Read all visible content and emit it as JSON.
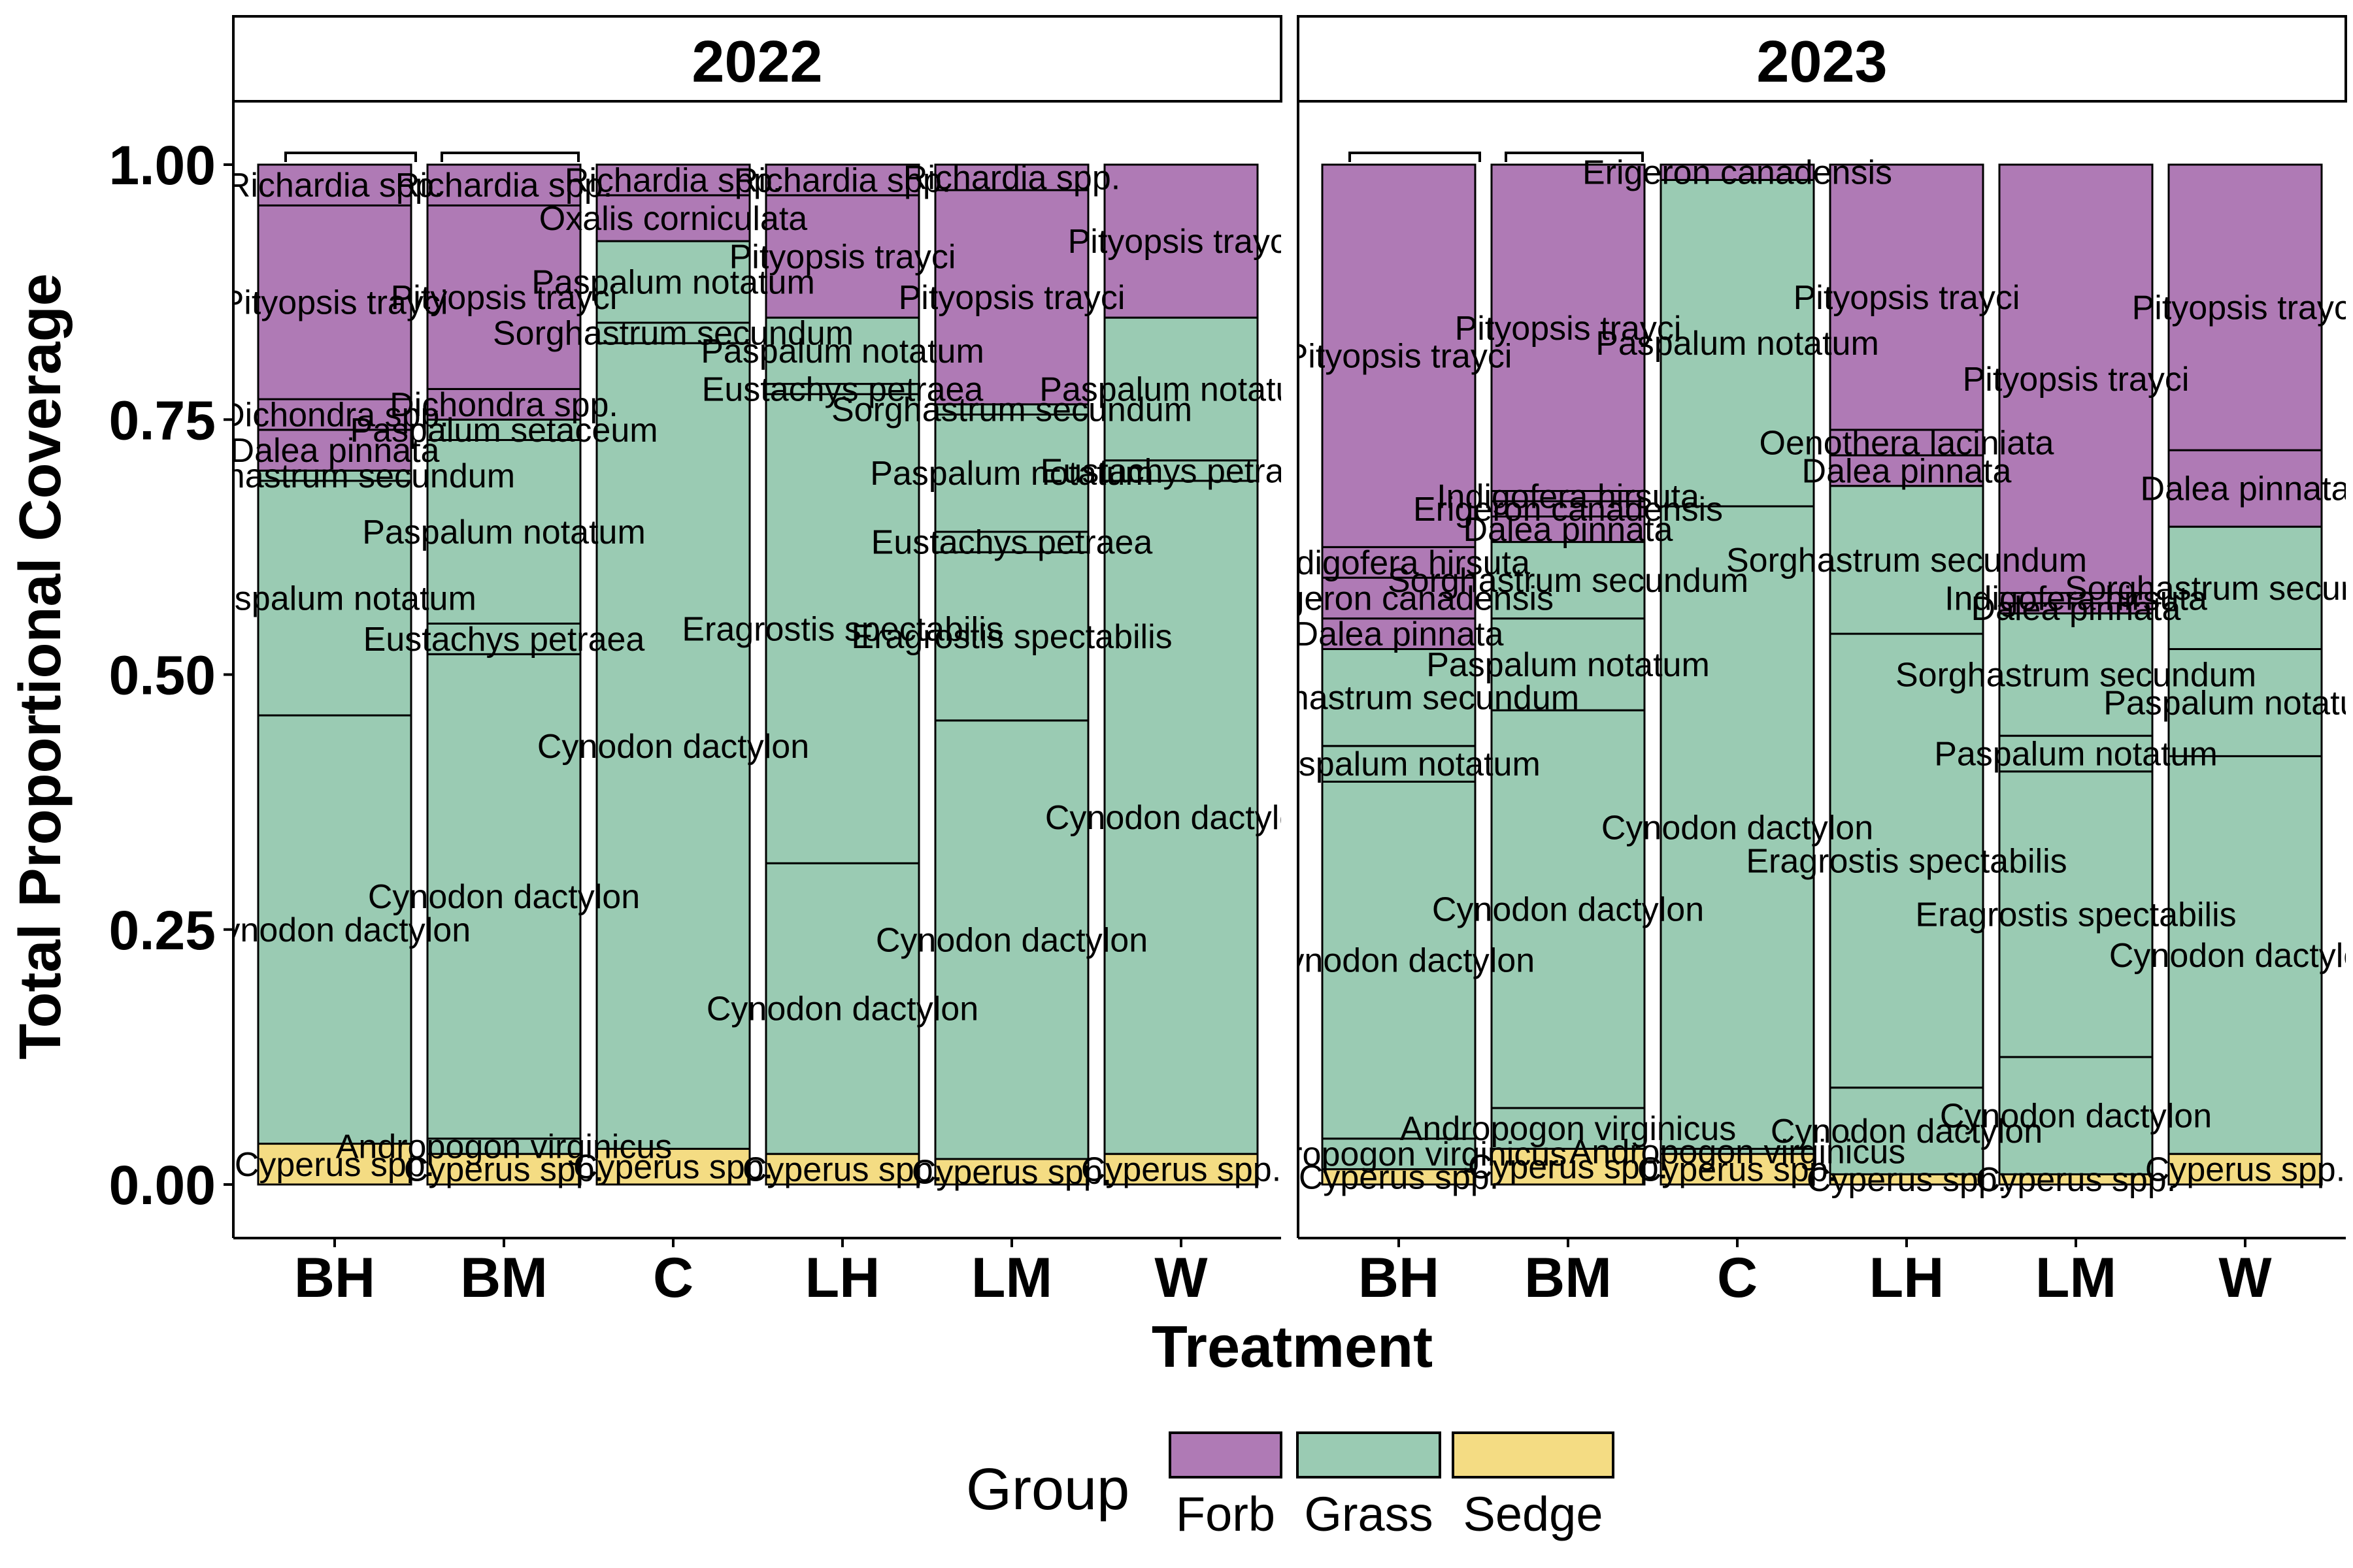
{
  "chart_data": {
    "type": "bar",
    "stacked": true,
    "facet_by": "year",
    "ylabel": "Total Proportional Coverage",
    "xlabel": "Treatment",
    "ylim": [
      0,
      1
    ],
    "y_ticks": [
      "0.00",
      "0.25",
      "0.50",
      "0.75",
      "1.00"
    ],
    "categories": [
      "BH",
      "BM",
      "C",
      "LH",
      "LM",
      "W"
    ],
    "legend": {
      "title": "Group",
      "placement": "bottom",
      "items": [
        {
          "name": "Forb",
          "color": "#AF7AB5"
        },
        {
          "name": "Grass",
          "color": "#9ACBB3"
        },
        {
          "name": "Sedge",
          "color": "#F4DC83"
        }
      ]
    },
    "panels": [
      {
        "title": "2022",
        "bars": [
          {
            "treatment": "BH",
            "segments": [
              {
                "species": "Cyperus spp.",
                "group": "Sedge",
                "value": 0.04
              },
              {
                "species": "Cynodon dactylon",
                "group": "Grass",
                "value": 0.42
              },
              {
                "species": "Paspalum notatum",
                "group": "Grass",
                "value": 0.23
              },
              {
                "species": "Sorghastrum secundum",
                "group": "Grass",
                "value": 0.01
              },
              {
                "species": "Dalea pinnata",
                "group": "Forb",
                "value": 0.04
              },
              {
                "species": "Dichondra spp.",
                "group": "Forb",
                "value": 0.03
              },
              {
                "species": "Pityopsis trayci",
                "group": "Forb",
                "value": 0.19
              },
              {
                "species": "Richardia spp.",
                "group": "Forb",
                "value": 0.04
              }
            ]
          },
          {
            "treatment": "BM",
            "segments": [
              {
                "species": "Cyperus spp.",
                "group": "Sedge",
                "value": 0.03
              },
              {
                "species": "Andropogon virginicus",
                "group": "Grass",
                "value": 0.015
              },
              {
                "species": "Cynodon dactylon",
                "group": "Grass",
                "value": 0.475
              },
              {
                "species": "Eustachys petraea",
                "group": "Grass",
                "value": 0.03
              },
              {
                "species": "Paspalum notatum",
                "group": "Grass",
                "value": 0.18
              },
              {
                "species": "Paspalum setaceum",
                "group": "Grass",
                "value": 0.02
              },
              {
                "species": "Dichondra spp.",
                "group": "Forb",
                "value": 0.03
              },
              {
                "species": "Pityopsis trayci",
                "group": "Forb",
                "value": 0.18
              },
              {
                "species": "Richardia spp.",
                "group": "Forb",
                "value": 0.04
              }
            ]
          },
          {
            "treatment": "C",
            "segments": [
              {
                "species": "Cyperus spp.",
                "group": "Sedge",
                "value": 0.035
              },
              {
                "species": "Cynodon dactylon",
                "group": "Grass",
                "value": 0.79
              },
              {
                "species": "Sorghastrum secundum",
                "group": "Grass",
                "value": 0.02
              },
              {
                "species": "Paspalum notatum",
                "group": "Grass",
                "value": 0.08
              },
              {
                "species": "Oxalis corniculata",
                "group": "Forb",
                "value": 0.045
              },
              {
                "species": "Richardia spp.",
                "group": "Forb",
                "value": 0.03
              }
            ]
          },
          {
            "treatment": "LH",
            "segments": [
              {
                "species": "Cyperus spp.",
                "group": "Sedge",
                "value": 0.03
              },
              {
                "species": "Cynodon dactylon",
                "group": "Grass",
                "value": 0.285
              },
              {
                "species": "Eragrostis spectabilis",
                "group": "Grass",
                "value": 0.46
              },
              {
                "species": "Eustachys petraea",
                "group": "Grass",
                "value": 0.01
              },
              {
                "species": "Paspalum notatum",
                "group": "Grass",
                "value": 0.065
              },
              {
                "species": "Pityopsis trayci",
                "group": "Forb",
                "value": 0.12
              },
              {
                "species": "Richardia spp.",
                "group": "Forb",
                "value": 0.03
              }
            ]
          },
          {
            "treatment": "LM",
            "segments": [
              {
                "species": "Cyperus spp.",
                "group": "Sedge",
                "value": 0.025
              },
              {
                "species": "Cynodon dactylon",
                "group": "Grass",
                "value": 0.43
              },
              {
                "species": "Eragrostis spectabilis",
                "group": "Grass",
                "value": 0.165
              },
              {
                "species": "Eustachys petraea",
                "group": "Grass",
                "value": 0.02
              },
              {
                "species": "Paspalum notatum",
                "group": "Grass",
                "value": 0.115
              },
              {
                "species": "Sorghastrum secundum",
                "group": "Grass",
                "value": 0.01
              },
              {
                "species": "Pityopsis trayci",
                "group": "Forb",
                "value": 0.21
              },
              {
                "species": "Richardia spp.",
                "group": "Forb",
                "value": 0.025
              }
            ]
          },
          {
            "treatment": "W",
            "segments": [
              {
                "species": "Cyperus spp.",
                "group": "Sedge",
                "value": 0.03
              },
              {
                "species": "Cynodon dactylon",
                "group": "Grass",
                "value": 0.66
              },
              {
                "species": "Eustachys petraea",
                "group": "Grass",
                "value": 0.02
              },
              {
                "species": "Paspalum notatum",
                "group": "Grass",
                "value": 0.14
              },
              {
                "species": "Pityopsis trayci",
                "group": "Forb",
                "value": 0.15
              }
            ]
          }
        ]
      },
      {
        "title": "2023",
        "bars": [
          {
            "treatment": "BH",
            "segments": [
              {
                "species": "Cyperus spp.",
                "group": "Sedge",
                "value": 0.015
              },
              {
                "species": "Andropogon virginicus",
                "group": "Grass",
                "value": 0.03
              },
              {
                "species": "Cynodon dactylon",
                "group": "Grass",
                "value": 0.35
              },
              {
                "species": "Paspalum notatum",
                "group": "Grass",
                "value": 0.035
              },
              {
                "species": "Sorghastrum secundum",
                "group": "Grass",
                "value": 0.095
              },
              {
                "species": "Dalea pinnata",
                "group": "Forb",
                "value": 0.03
              },
              {
                "species": "Erigeron canadensis",
                "group": "Forb",
                "value": 0.04
              },
              {
                "species": "Indigofera hirsuta",
                "group": "Forb",
                "value": 0.03
              },
              {
                "species": "Pityopsis trayci",
                "group": "Forb",
                "value": 0.375
              }
            ]
          },
          {
            "treatment": "BM",
            "segments": [
              {
                "species": "Cyperus spp.",
                "group": "Sedge",
                "value": 0.035
              },
              {
                "species": "Andropogon virginicus",
                "group": "Grass",
                "value": 0.04
              },
              {
                "species": "Cynodon dactylon",
                "group": "Grass",
                "value": 0.39
              },
              {
                "species": "Paspalum notatum",
                "group": "Grass",
                "value": 0.09
              },
              {
                "species": "Sorghastrum secundum",
                "group": "Grass",
                "value": 0.075
              },
              {
                "species": "Dalea pinnata",
                "group": "Forb",
                "value": 0.025
              },
              {
                "species": "Erigeron canadensis",
                "group": "Forb",
                "value": 0.015
              },
              {
                "species": "Indigofera hirsuta",
                "group": "Forb",
                "value": 0.01
              },
              {
                "species": "Pityopsis trayci",
                "group": "Forb",
                "value": 0.32
              }
            ]
          },
          {
            "treatment": "C",
            "segments": [
              {
                "species": "Cyperus spp.",
                "group": "Sedge",
                "value": 0.03
              },
              {
                "species": "Andropogon virginicus",
                "group": "Grass",
                "value": 0.005
              },
              {
                "species": "Cynodon dactylon",
                "group": "Grass",
                "value": 0.63
              },
              {
                "species": "Paspalum notatum",
                "group": "Grass",
                "value": 0.32
              },
              {
                "species": "Erigeron canadensis",
                "group": "Forb",
                "value": 0.015
              }
            ]
          },
          {
            "treatment": "LH",
            "segments": [
              {
                "species": "Cyperus spp.",
                "group": "Sedge",
                "value": 0.01
              },
              {
                "species": "Cynodon dactylon",
                "group": "Grass",
                "value": 0.085
              },
              {
                "species": "Eragrostis spectabilis",
                "group": "Grass",
                "value": 0.445
              },
              {
                "species": "Sorghastrum secundum",
                "group": "Grass",
                "value": 0.145
              },
              {
                "species": "Dalea pinnata",
                "group": "Forb",
                "value": 0.03
              },
              {
                "species": "Oenothera laciniata",
                "group": "Forb",
                "value": 0.025
              },
              {
                "species": "Pityopsis trayci",
                "group": "Forb",
                "value": 0.26
              }
            ]
          },
          {
            "treatment": "LM",
            "segments": [
              {
                "species": "Cyperus spp.",
                "group": "Sedge",
                "value": 0.01
              },
              {
                "species": "Cynodon dactylon",
                "group": "Grass",
                "value": 0.115
              },
              {
                "species": "Eragrostis spectabilis",
                "group": "Grass",
                "value": 0.28
              },
              {
                "species": "Paspalum notatum",
                "group": "Grass",
                "value": 0.035
              },
              {
                "species": "Sorghastrum secundum",
                "group": "Grass",
                "value": 0.12
              },
              {
                "species": "Dalea pinnata",
                "group": "Forb",
                "value": 0.01
              },
              {
                "species": "Indigofera hirsuta",
                "group": "Forb",
                "value": 0.01
              },
              {
                "species": "Pityopsis trayci",
                "group": "Forb",
                "value": 0.42
              }
            ]
          },
          {
            "treatment": "W",
            "segments": [
              {
                "species": "Cyperus spp.",
                "group": "Sedge",
                "value": 0.03
              },
              {
                "species": "Cynodon dactylon",
                "group": "Grass",
                "value": 0.39
              },
              {
                "species": "Paspalum notatum",
                "group": "Grass",
                "value": 0.105
              },
              {
                "species": "Sorghastrum secundum",
                "group": "Grass",
                "value": 0.12
              },
              {
                "species": "Dalea pinnata",
                "group": "Forb",
                "value": 0.075
              },
              {
                "species": "Pityopsis trayci",
                "group": "Forb",
                "value": 0.28
              }
            ]
          }
        ]
      }
    ]
  }
}
